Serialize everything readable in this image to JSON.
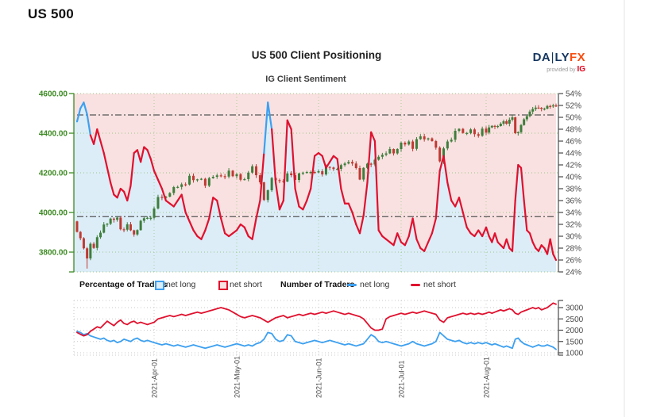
{
  "page": {
    "title": "US 500"
  },
  "header": {
    "title": "US 500 Client Positioning",
    "subtitle": "IG Client Sentiment"
  },
  "logo": {
    "da": "DA",
    "bar": "|",
    "ly": "LY",
    "fx": "FX",
    "tagline": "provided by",
    "brand": "IG"
  },
  "legend": {
    "pct_header": "Percentage of Traders",
    "pct_long": "net long",
    "pct_short": "net short",
    "num_header": "Number of Traders",
    "num_long": "net long",
    "num_short": "net short"
  },
  "colors": {
    "net_long_blue": "#3da0f0",
    "net_short_red": "#e0112e",
    "candle_up": "#3e7d3b",
    "candle_down": "#bf3a32",
    "fill_above": "#f9e1e1",
    "fill_below": "#dcedf8",
    "price_axis_green": "#3c8a22",
    "axis_gray": "#4a4a4a",
    "grid_green": "#9cc785",
    "grid_gray": "#c9c9c9",
    "ref_line": "#555555",
    "page_border": "#e3e3e3",
    "logo_navy": "#15365f",
    "logo_orange": "#f84e10",
    "logo_red": "#e2001a"
  },
  "chart_data": [
    {
      "type": "candlestick+line",
      "title": "US 500 Client Positioning",
      "subtitle": "IG Client Sentiment",
      "price_axis": {
        "side": "left",
        "min": 3700,
        "max": 4600,
        "ticks": [
          4600,
          4400,
          4200,
          4000,
          3800
        ]
      },
      "pct_axis": {
        "side": "right",
        "min": 24,
        "max": 54,
        "step": 2,
        "suffix": "%"
      },
      "x_axis": {
        "start": "2021-Mar-01",
        "end": "2021-Sep-07",
        "tick_labels": [
          "2021-Apr-01",
          "2021-May-01",
          "2021-Jun-01",
          "2021-Jul-01",
          "2021-Aug-01"
        ],
        "tick_days": [
          23,
          44,
          65,
          87,
          109
        ]
      },
      "ref_lines_pct": [
        50.4,
        33.3
      ],
      "blue_above_pct": 50,
      "series": {
        "price_close": [
          3902,
          3870,
          3819,
          3768,
          3842,
          3821,
          3875,
          3898,
          3939,
          3943,
          3969,
          3963,
          3974,
          3915,
          3913,
          3940,
          3910,
          3889,
          3911,
          3958,
          3971,
          3973,
          3973,
          4020,
          4078,
          4074,
          4080,
          4098,
          4128,
          4129,
          4142,
          4141,
          4185,
          4163,
          4167,
          4170,
          4135,
          4173,
          4180,
          4187,
          4183,
          4181,
          4211,
          4183,
          4193,
          4165,
          4168,
          4201,
          4233,
          4188,
          4152,
          4063,
          4112,
          4174,
          4163,
          4159,
          4156,
          4197,
          4188,
          4164,
          4197,
          4201,
          4204,
          4204,
          4202,
          4208,
          4192,
          4230,
          4227,
          4219,
          4220,
          4239,
          4247,
          4255,
          4247,
          4224,
          4166,
          4225,
          4246,
          4242,
          4266,
          4281,
          4291,
          4298,
          4320,
          4298,
          4320,
          4352,
          4343,
          4358,
          4321,
          4370,
          4384,
          4369,
          4374,
          4360,
          4327,
          4258,
          4323,
          4358,
          4367,
          4412,
          4422,
          4401,
          4401,
          4419,
          4395,
          4387,
          4423,
          4403,
          4429,
          4437,
          4432,
          4436,
          4448,
          4460,
          4448,
          4468,
          4480,
          4400,
          4405,
          4441,
          4470,
          4486,
          4509,
          4522,
          4529,
          4528,
          4523,
          4524,
          4537,
          4535,
          4540,
          4535
        ],
        "net_long_pct": [
          49.3,
          51.5,
          52.5,
          50.5,
          47,
          45.5,
          48,
          46,
          44,
          41.5,
          39,
          37,
          36.5,
          38,
          37.5,
          36,
          38.5,
          44,
          44.5,
          42.5,
          45,
          44.5,
          43,
          41,
          39.5,
          38,
          36,
          35.5,
          35,
          36,
          37,
          34,
          32.5,
          31,
          30,
          29.5,
          31,
          33,
          36.5,
          36,
          33,
          30.5,
          30,
          30.5,
          31,
          32,
          31.5,
          30,
          29.5,
          33,
          36,
          44,
          52.5,
          48,
          39,
          34.5,
          36,
          49.5,
          48,
          38,
          35,
          34.5,
          36,
          38,
          43.5,
          44,
          43.5,
          41.5,
          42.5,
          43.5,
          43,
          38,
          35.5,
          35.5,
          34,
          32,
          30.5,
          33.5,
          39,
          47.5,
          46,
          31,
          30,
          29.5,
          29,
          28.5,
          30.5,
          29,
          28.5,
          30,
          33,
          29.5,
          28,
          27.5,
          29,
          30.5,
          33,
          41,
          43.5,
          39,
          36,
          35,
          36.5,
          34,
          31.5,
          30.5,
          30,
          31,
          30,
          31.5,
          30,
          29,
          30.5,
          29,
          28.5,
          28,
          29.5,
          28,
          27.5,
          36,
          42,
          41.5,
          36,
          31,
          30.5,
          29,
          28,
          27.5,
          28.5,
          28,
          27,
          29.5,
          27,
          26
        ]
      }
    },
    {
      "type": "line",
      "count_axis": {
        "side": "right",
        "min": 900,
        "max": 3300,
        "ticks": [
          3000,
          2500,
          2000,
          1500,
          1000
        ]
      },
      "series": [
        {
          "name": "net long",
          "color_key": "net_long_blue",
          "values": [
            1950,
            1900,
            1800,
            1850,
            1750,
            1700,
            1650,
            1600,
            1650,
            1550,
            1500,
            1550,
            1450,
            1500,
            1600,
            1550,
            1500,
            1600,
            1650,
            1550,
            1500,
            1550,
            1500,
            1450,
            1400,
            1350,
            1400,
            1350,
            1300,
            1350,
            1300,
            1250,
            1300,
            1350,
            1300,
            1250,
            1200,
            1250,
            1300,
            1350,
            1300,
            1250,
            1300,
            1350,
            1400,
            1350,
            1300,
            1350,
            1300,
            1400,
            1450,
            1600,
            1900,
            1850,
            1600,
            1500,
            1550,
            1800,
            1750,
            1500,
            1450,
            1400,
            1450,
            1500,
            1550,
            1500,
            1450,
            1500,
            1550,
            1500,
            1450,
            1400,
            1350,
            1400,
            1350,
            1300,
            1350,
            1400,
            1600,
            1800,
            1700,
            1500,
            1450,
            1500,
            1450,
            1400,
            1350,
            1300,
            1350,
            1400,
            1500,
            1400,
            1350,
            1300,
            1350,
            1400,
            1500,
            1900,
            1750,
            1600,
            1550,
            1500,
            1550,
            1450,
            1400,
            1450,
            1400,
            1450,
            1400,
            1450,
            1400,
            1350,
            1400,
            1350,
            1300,
            1250,
            1300,
            1250,
            1200,
            1600,
            1650,
            1500,
            1400,
            1350,
            1300,
            1250,
            1300,
            1350,
            1300,
            1300,
            1350,
            1300,
            1250,
            1150
          ]
        },
        {
          "name": "net short",
          "color_key": "net_short_red",
          "values": [
            1900,
            1820,
            1750,
            1800,
            1950,
            2050,
            2150,
            2100,
            2250,
            2400,
            2300,
            2200,
            2350,
            2450,
            2300,
            2250,
            2350,
            2400,
            2300,
            2350,
            2300,
            2250,
            2300,
            2350,
            2500,
            2550,
            2600,
            2650,
            2600,
            2650,
            2700,
            2650,
            2700,
            2750,
            2800,
            2750,
            2800,
            2850,
            2900,
            2950,
            3000,
            2950,
            2900,
            2800,
            2700,
            2600,
            2550,
            2600,
            2650,
            2600,
            2550,
            2450,
            2350,
            2450,
            2550,
            2600,
            2650,
            2550,
            2600,
            2650,
            2700,
            2650,
            2700,
            2750,
            2700,
            2750,
            2800,
            2750,
            2800,
            2850,
            2800,
            2750,
            2700,
            2750,
            2700,
            2650,
            2600,
            2500,
            2300,
            2100,
            2000,
            2000,
            2050,
            2500,
            2600,
            2650,
            2700,
            2750,
            2700,
            2750,
            2800,
            2750,
            2800,
            2850,
            2800,
            2750,
            2700,
            2450,
            2350,
            2550,
            2600,
            2650,
            2700,
            2750,
            2700,
            2750,
            2700,
            2750,
            2700,
            2750,
            2800,
            2750,
            2800,
            2850,
            2900,
            2850,
            2900,
            2950,
            2900,
            2750,
            2700,
            2800,
            2850,
            2900,
            2950,
            3000,
            2950,
            3000,
            2900,
            2950,
            3000,
            3100,
            3200,
            3150
          ]
        }
      ]
    }
  ]
}
